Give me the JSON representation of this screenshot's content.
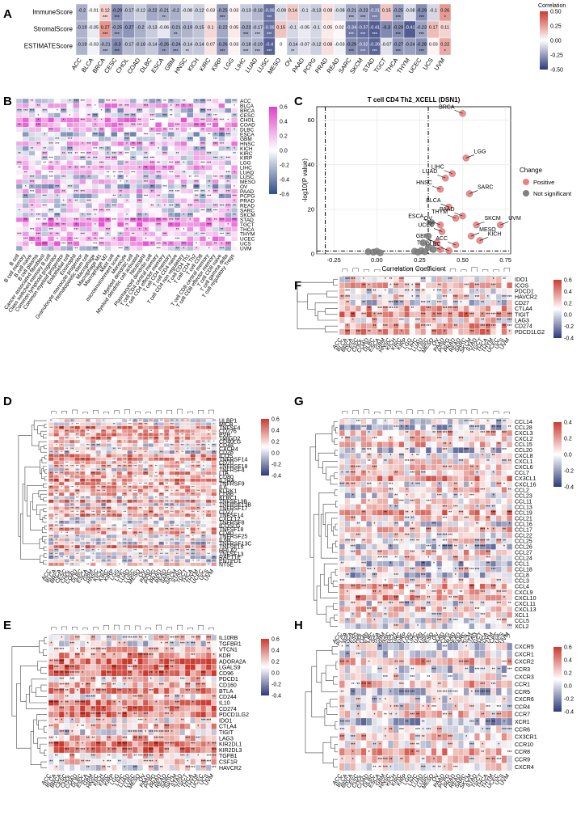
{
  "panels": {
    "A": "A",
    "B": "B",
    "C": "C",
    "D": "D",
    "E": "E",
    "F": "F",
    "G": "G",
    "H": "H"
  },
  "colors": {
    "pos": "#cc3a2e",
    "neg": "#2d3a7a",
    "magenta": "#e040c8",
    "blueB": "#2e4d8a",
    "dotPos": "#f08080",
    "dotNS": "#808080"
  },
  "cancers": [
    "ACC",
    "BLCA",
    "BRCA",
    "CESC",
    "CHOL",
    "COAD",
    "DLBC",
    "ESCA",
    "GBM",
    "HNSC",
    "KICH",
    "KIRC",
    "KIRP",
    "LGG",
    "LIHC",
    "LUAD",
    "LUSC",
    "MESO",
    "OV",
    "PAAD",
    "PCPG",
    "PRAD",
    "READ",
    "SARC",
    "SKCM",
    "STAD",
    "TGCT",
    "THCA",
    "THYM",
    "UCEC",
    "UCS",
    "UVM"
  ],
  "chart_data": [
    {
      "panel": "A",
      "type": "heatmap",
      "rows": [
        "ImmuneScore",
        "StromalScore",
        "ESTIMATEScore"
      ],
      "values": [
        [
          -0.2,
          -0.01,
          0.12,
          -0.29,
          -0.17,
          -0.12,
          -0.22,
          -0.21,
          -0.2,
          -0.08,
          -0.12,
          0.03,
          -0.25,
          0.03,
          -0.13,
          -0.18,
          -0.36,
          -0.09,
          0.14,
          -0.1,
          -0.13,
          0.08,
          -0.08,
          -0.21,
          -0.23,
          -0.31,
          0.15,
          -0.25,
          -0.08,
          -0.29,
          -0.1,
          0.26
        ],
        [
          -0.19,
          -0.05,
          0.27,
          -0.25,
          -0.27,
          -0.2,
          -0.13,
          -0.06,
          -0.21,
          -0.19,
          -0.15,
          0.1,
          -0.22,
          0.05,
          -0.22,
          -0.17,
          -0.36,
          0.15,
          -0.1,
          -0.05,
          -0.1,
          0.05,
          0.02,
          -0.34,
          -0.37,
          -0.41,
          -0.3,
          -0.29,
          -0.41,
          -0.23,
          0.17,
          0.11
        ],
        [
          -0.19,
          -0.03,
          -0.21,
          -0.3,
          -0.17,
          -0.18,
          -0.14,
          -0.26,
          -0.24,
          -0.14,
          -0.14,
          0.07,
          -0.26,
          0.03,
          -0.18,
          -0.19,
          -0.4,
          0,
          -0.14,
          -0.07,
          -0.12,
          0.08,
          -0.03,
          -0.29,
          -0.32,
          -0.39,
          -0.07,
          -0.27,
          -0.24,
          -0.28,
          0.03,
          0.22
        ]
      ],
      "stars": [
        [
          "",
          "",
          "***",
          "***",
          "",
          "",
          "",
          "**",
          "",
          "",
          "",
          "",
          "***",
          "",
          "",
          "",
          "***",
          "",
          "",
          "",
          "",
          "",
          "",
          "***",
          "***",
          "***",
          "",
          "***",
          "",
          "***",
          "",
          "*"
        ],
        [
          "",
          "",
          "***",
          "***",
          "",
          "",
          "",
          "",
          "**",
          "",
          "",
          "",
          "",
          "",
          "***",
          "***",
          "***",
          "",
          "",
          "",
          "",
          "",
          "",
          "***",
          "***",
          "***",
          "",
          "***",
          "",
          "***",
          "",
          ""
        ],
        [
          "",
          "",
          "***",
          "***",
          "",
          "",
          "",
          "**",
          "***",
          "**",
          "",
          "",
          "***",
          "",
          "***",
          "***",
          "***",
          "",
          "**",
          "",
          "",
          "",
          "",
          "***",
          "***",
          "***",
          "",
          "***",
          "",
          "***",
          "",
          "*"
        ]
      ],
      "legend_title": "Correlation",
      "legend_ticks": [
        "0.50",
        "0.25",
        "0.00",
        "-0.25",
        "-0.50"
      ]
    },
    {
      "panel": "B",
      "type": "heatmap",
      "columns": [
        "B cell",
        "B cell memory",
        "B cell naive",
        "B cell plasma",
        "Cancer associated fibroblast",
        "Class switched memory B cell",
        "Common lymphoid progenitor",
        "Common myeloid progenitor",
        "Endothelial cell",
        "Eosinophil",
        "Granulocyte monocyte progenitor",
        "Hematopoietic stem cell",
        "Macrophage",
        "Macrophage M1",
        "Macrophage M2",
        "Mast cell",
        "microenvironment score",
        "Monocyte",
        "Myeloid dendritic cell",
        "Myeloid dendritic cell activated",
        "Neutrophil",
        "Plasmacytoid dendritic cell",
        "T cell CD4 central memory",
        "T cell CD4 effector memory",
        "T cell CD4 memory",
        "T cell CD4 naive",
        "T cell CD4 non regulatory",
        "T cell CD4 Th1",
        "T cell CD4 Th2",
        "T cell CD8",
        "T cell CD8 central memory",
        "T cell CD8 effector memory",
        "T cell CD8 naive",
        "T cell gamma delta",
        "T cell regulatory Tregs"
      ],
      "legend_ticks": [
        "0.6",
        "0.4",
        "0.2",
        "0.0",
        "-0.2",
        "-0.4",
        "-0.6"
      ]
    },
    {
      "panel": "C",
      "type": "scatter",
      "title": "T cell CD4 Th2_XCELL (DSN1)",
      "xlabel": "Correlation Coefficient",
      "ylabel": "-log10(P value)",
      "xlim": [
        -0.35,
        0.78
      ],
      "ylim": [
        0,
        66
      ],
      "x_ticks": [
        "-0.25",
        "0.00",
        "0.25",
        "0.50",
        "0.75"
      ],
      "y_ticks": [
        "0",
        "20",
        "40",
        "60"
      ],
      "legend_title": "Change",
      "legend_entries": [
        "Positive",
        "Not significant"
      ],
      "points": [
        {
          "label": "BRCA",
          "x": 0.5,
          "y": 63,
          "group": "Positive"
        },
        {
          "label": "LGG",
          "x": 0.52,
          "y": 43,
          "group": "Positive"
        },
        {
          "label": "LIHC",
          "x": 0.44,
          "y": 36,
          "group": "Positive"
        },
        {
          "label": "LUAD",
          "x": 0.4,
          "y": 34,
          "group": "Positive"
        },
        {
          "label": "HNSC",
          "x": 0.37,
          "y": 29,
          "group": "Positive"
        },
        {
          "label": "SARC",
          "x": 0.54,
          "y": 27,
          "group": "Positive"
        },
        {
          "label": "BLCA",
          "x": 0.42,
          "y": 21,
          "group": "Positive"
        },
        {
          "label": "PAAD",
          "x": 0.5,
          "y": 17,
          "group": "Positive"
        },
        {
          "label": "THYM",
          "x": 0.46,
          "y": 16,
          "group": "Positive"
        },
        {
          "label": "UVM",
          "x": 0.72,
          "y": 13,
          "group": "Positive"
        },
        {
          "label": "SKCM",
          "x": 0.58,
          "y": 13,
          "group": "Positive"
        },
        {
          "label": "ESCA",
          "x": 0.32,
          "y": 14,
          "group": "Not significant"
        },
        {
          "label": "OV",
          "x": 0.37,
          "y": 13,
          "group": "Positive"
        },
        {
          "label": "UCEC",
          "x": 0.38,
          "y": 10,
          "group": "Positive"
        },
        {
          "label": "MESO",
          "x": 0.55,
          "y": 8,
          "group": "Positive"
        },
        {
          "label": "KICH",
          "x": 0.6,
          "y": 6,
          "group": "Positive"
        },
        {
          "label": "ACC",
          "x": 0.46,
          "y": 4,
          "group": "Positive"
        },
        {
          "label": "GBM",
          "x": 0.35,
          "y": 5,
          "group": "Positive"
        },
        {
          "label": "TGCT",
          "x": 0.37,
          "y": 2,
          "group": "Positive"
        },
        {
          "label": "DLBC",
          "x": 0.42,
          "y": 1.5,
          "group": "Positive"
        },
        {
          "label": "",
          "x": 0.3,
          "y": 8,
          "group": "Not significant"
        },
        {
          "label": "",
          "x": 0.27,
          "y": 5,
          "group": "Not significant"
        },
        {
          "label": "",
          "x": 0.3,
          "y": 3,
          "group": "Not significant"
        },
        {
          "label": "",
          "x": 0.33,
          "y": 2,
          "group": "Not significant"
        },
        {
          "label": "",
          "x": -0.05,
          "y": 1,
          "group": "Not significant"
        },
        {
          "label": "",
          "x": -0.02,
          "y": 0.8,
          "group": "Not significant"
        },
        {
          "label": "",
          "x": 0.0,
          "y": 1.2,
          "group": "Not significant"
        },
        {
          "label": "",
          "x": 0.02,
          "y": 0.5,
          "group": "Not significant"
        },
        {
          "label": "",
          "x": 0.22,
          "y": 1.2,
          "group": "Not significant"
        },
        {
          "label": "",
          "x": 0.24,
          "y": 0.8,
          "group": "Not significant"
        },
        {
          "label": "",
          "x": 0.26,
          "y": 1.5,
          "group": "Not significant"
        },
        {
          "label": "",
          "x": 0.28,
          "y": 1,
          "group": "Not significant"
        }
      ]
    },
    {
      "panel": "D",
      "type": "heatmap",
      "rows": [
        "ULBP1",
        "MICB",
        "TNFSF4",
        "CD276",
        "PVR",
        "TMIGD2",
        "CD40LG",
        "CD48",
        "CXCR4",
        "CD28",
        "ICOS",
        "TNFRSF14",
        "CD70",
        "TNFRSF18",
        "TNFRSF4",
        "LTA",
        "CD80",
        "IL2RA",
        "TNFRSF9",
        "IL6",
        "KLRK1",
        "CD86",
        "KLRC1",
        "TNFSF13B",
        "TNFRSF13B",
        "TNFRSF17",
        "CD27",
        "TNFSF14",
        "CXCL12",
        "TNFRSF8",
        "ICOSLG",
        "TNFSF18",
        "CD40",
        "TNFRSF25",
        "IL6R",
        "TNFRSF13C",
        "TNFSF15",
        "HHLA2",
        "TNFSF13",
        "RAET1E",
        "ENTPD1",
        "NT5E"
      ],
      "legend_ticks": [
        "0.6",
        "0.4",
        "0.2",
        "0.0",
        "-0.2",
        "-0.4"
      ]
    },
    {
      "panel": "E",
      "type": "heatmap",
      "rows": [
        "IL10RB",
        "TGFBR1",
        "VTCN1",
        "KDR",
        "ADORA2A",
        "LGALS9",
        "CD96",
        "PDCD1",
        "CD160",
        "BTLA",
        "CD244",
        "IL10",
        "CD274",
        "PDCD1LG2",
        "IDO1",
        "CTLA4",
        "TIGIT",
        "LAG3",
        "KIR2DL1",
        "KIR2DL3",
        "TGFB1",
        "CSF1R",
        "HAVCR2"
      ],
      "legend_ticks": [
        "0.6",
        "0.4",
        "0.2",
        "0.0",
        "-0.2",
        "-0.4"
      ]
    },
    {
      "panel": "F",
      "type": "heatmap",
      "rows": [
        "IDO1",
        "ICOS",
        "PDCD1",
        "HAVCR2",
        "CD27",
        "CTLA4",
        "TIGIT",
        "LAG3",
        "CD274",
        "PDCD1LG2"
      ],
      "legend_ticks": [
        "0.6",
        "0.4",
        "0.2",
        "0.0",
        "-0.2",
        "-0.4"
      ]
    },
    {
      "panel": "G",
      "type": "heatmap",
      "rows": [
        "CCL14",
        "CCL28",
        "CXCL3",
        "CXCL2",
        "CCL15",
        "CCL20",
        "CXCL8",
        "CXCL1",
        "CXCL6",
        "CCL7",
        "CX3CL1",
        "CXCL16",
        "CCL2",
        "CCL23",
        "CCL11",
        "CCL13",
        "CCL19",
        "CCL21",
        "CCL16",
        "CCL17",
        "CCL22",
        "CCL25",
        "CCL26",
        "CCL27",
        "CCL24",
        "CCL1",
        "CCL18",
        "CCL8",
        "CCL3",
        "CCL4",
        "CXCL9",
        "CXCL10",
        "CXCL11",
        "CXCL13",
        "XCL1",
        "CCL5",
        "XCL2"
      ],
      "legend_ticks": [
        "0.4",
        "0.2",
        "0.0",
        "-0.2",
        "-0.4"
      ]
    },
    {
      "panel": "H",
      "type": "heatmap",
      "rows": [
        "CXCR5",
        "CXCR1",
        "CXCR2",
        "CCR3",
        "CXCR3",
        "CCR1",
        "CCR5",
        "CXCR6",
        "CCR4",
        "CCR7",
        "XCR1",
        "CCR6",
        "CX3CR1",
        "CCR10",
        "CCR8",
        "CCR9",
        "CXCR4"
      ],
      "legend_ticks": [
        "0.6",
        "0.4",
        "0.2",
        "0.0",
        "-0.2",
        "-0.4"
      ]
    }
  ]
}
